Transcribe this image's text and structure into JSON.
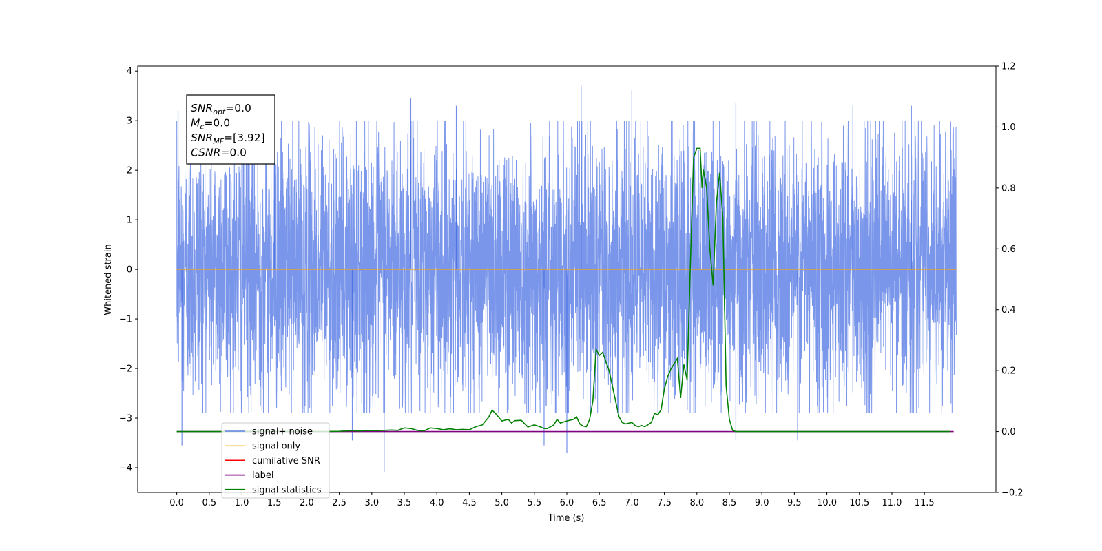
{
  "chart_data": {
    "type": "line",
    "xlabel": "Time (s)",
    "ylabel": "Whitened strain",
    "xlim": [
      -0.6,
      12.6
    ],
    "ylim": [
      -4.5,
      4.1
    ],
    "y2lim": [
      -0.2,
      1.2
    ],
    "x_ticks": [
      0.0,
      0.5,
      1.0,
      1.5,
      2.0,
      2.5,
      3.0,
      3.5,
      4.0,
      4.5,
      5.0,
      5.5,
      6.0,
      6.5,
      7.0,
      7.5,
      8.0,
      8.5,
      9.0,
      9.5,
      10.0,
      10.5,
      11.0,
      11.5
    ],
    "x_tick_labels": [
      "0.0",
      "0.5",
      "1.0",
      "1.5",
      "2.0",
      "2.5",
      "3.0",
      "3.5",
      "4.0",
      "4.5",
      "5.0",
      "5.5",
      "6.0",
      "6.5",
      "7.0",
      "7.5",
      "8.0",
      "8.5",
      "9.0",
      "9.5",
      "10.0",
      "10.5",
      "11.0",
      "11.5"
    ],
    "y_ticks": [
      -4,
      -3,
      -2,
      -1,
      0,
      1,
      2,
      3,
      4
    ],
    "y_tick_labels": [
      "−4",
      "−3",
      "−2",
      "−1",
      "0",
      "1",
      "2",
      "3",
      "4"
    ],
    "y2_ticks": [
      -0.2,
      0.0,
      0.2,
      0.4,
      0.6,
      0.8,
      1.0,
      1.2
    ],
    "y2_tick_labels": [
      "−0.2",
      "0.0",
      "0.2",
      "0.4",
      "0.6",
      "0.8",
      "1.0",
      "1.2"
    ],
    "grid": false,
    "legend_placement": "lower-left",
    "info_box": {
      "lines": [
        {
          "base": "SNR",
          "sub": "opt",
          "rest": "=0.0"
        },
        {
          "base": "M",
          "sub": "c",
          "rest": "=0.0"
        },
        {
          "base": "SNR",
          "sub": "MF",
          "rest": "=[3.92]"
        },
        {
          "base": "CSNR",
          "sub": "",
          "rest": "=0.0"
        }
      ]
    },
    "series": [
      {
        "name": "signal+ noise",
        "color": "#4169e1",
        "axis": "left",
        "kind": "noise",
        "x_range": [
          0.0,
          11.99
        ],
        "typical_amplitude": [
          -2.3,
          2.6
        ],
        "extreme_max": 3.7,
        "extreme_min": -4.1,
        "spikes": [
          {
            "x": 0.08,
            "y": -3.55
          },
          {
            "x": 3.19,
            "y": -4.1
          },
          {
            "x": 6.0,
            "y": -3.7
          },
          {
            "x": 5.65,
            "y": -3.55
          },
          {
            "x": 8.6,
            "y": -3.45
          },
          {
            "x": 9.55,
            "y": -3.45
          },
          {
            "x": 2.7,
            "y": -3.45
          },
          {
            "x": 6.22,
            "y": 3.7
          },
          {
            "x": 7.0,
            "y": 3.62
          },
          {
            "x": 3.6,
            "y": 3.45
          },
          {
            "x": 1.5,
            "y": 3.3
          },
          {
            "x": 8.6,
            "y": 3.35
          },
          {
            "x": 11.3,
            "y": 3.3
          },
          {
            "x": 0.02,
            "y": 3.2
          },
          {
            "x": 4.3,
            "y": 3.3
          },
          {
            "x": 10.4,
            "y": 3.3
          }
        ]
      },
      {
        "name": "signal only",
        "color": "#ffa500",
        "axis": "left",
        "x": [
          0.0,
          12.0
        ],
        "y": [
          0.0,
          0.0
        ]
      },
      {
        "name": "cumilative SNR",
        "color": "#ff0000",
        "axis": "right",
        "x": [],
        "y": []
      },
      {
        "name": "label",
        "color": "#800080",
        "axis": "right",
        "x": [
          0.0,
          11.95
        ],
        "y": [
          0.0,
          0.0
        ]
      },
      {
        "name": "signal statistics",
        "color": "#008000",
        "axis": "right",
        "x": [
          0.0,
          2.0,
          2.3,
          2.5,
          2.6,
          2.7,
          2.8,
          2.9,
          3.0,
          3.1,
          3.2,
          3.3,
          3.4,
          3.5,
          3.6,
          3.7,
          3.8,
          3.9,
          4.0,
          4.1,
          4.2,
          4.3,
          4.4,
          4.5,
          4.6,
          4.7,
          4.75,
          4.8,
          4.85,
          4.9,
          5.0,
          5.1,
          5.15,
          5.2,
          5.3,
          5.4,
          5.5,
          5.6,
          5.65,
          5.7,
          5.8,
          5.85,
          5.9,
          6.0,
          6.1,
          6.15,
          6.2,
          6.25,
          6.3,
          6.35,
          6.4,
          6.45,
          6.5,
          6.55,
          6.6,
          6.65,
          6.7,
          6.75,
          6.8,
          6.85,
          6.9,
          7.0,
          7.05,
          7.1,
          7.15,
          7.2,
          7.3,
          7.35,
          7.4,
          7.45,
          7.5,
          7.55,
          7.6,
          7.7,
          7.75,
          7.8,
          7.85,
          7.9,
          7.95,
          8.0,
          8.05,
          8.08,
          8.1,
          8.15,
          8.2,
          8.25,
          8.3,
          8.35,
          8.4,
          8.45,
          8.5,
          8.55,
          8.6,
          8.65,
          8.7,
          8.75,
          8.8,
          8.85,
          8.9,
          9.0,
          9.5,
          11.9
        ],
        "y": [
          0.0,
          0.0,
          0.0,
          0.001,
          0.002,
          0.003,
          0.002,
          0.003,
          0.003,
          0.003,
          0.004,
          0.005,
          0.004,
          0.012,
          0.01,
          0.004,
          0.002,
          0.012,
          0.01,
          0.006,
          0.009,
          0.006,
          0.007,
          0.006,
          0.016,
          0.022,
          0.035,
          0.048,
          0.07,
          0.06,
          0.035,
          0.04,
          0.028,
          0.036,
          0.037,
          0.015,
          0.022,
          0.015,
          0.01,
          0.01,
          0.022,
          0.04,
          0.028,
          0.035,
          0.04,
          0.048,
          0.025,
          0.018,
          0.016,
          0.04,
          0.1,
          0.27,
          0.25,
          0.26,
          0.23,
          0.2,
          0.15,
          0.1,
          0.05,
          0.03,
          0.025,
          0.03,
          0.02,
          0.016,
          0.02,
          0.016,
          0.03,
          0.06,
          0.055,
          0.072,
          0.14,
          0.18,
          0.205,
          0.24,
          0.11,
          0.22,
          0.17,
          0.55,
          0.9,
          0.93,
          0.93,
          0.8,
          0.86,
          0.8,
          0.6,
          0.48,
          0.75,
          0.85,
          0.7,
          0.15,
          0.04,
          0.004,
          0.0,
          0.0,
          0.0,
          0.0,
          0.0,
          0.0,
          0.0,
          0.0,
          0.0,
          0.0
        ]
      }
    ]
  },
  "legend": {
    "items": [
      {
        "label": "signal+ noise",
        "color": "#7090e0"
      },
      {
        "label": "signal only",
        "color": "#ffd27f"
      },
      {
        "label": "cumilative SNR",
        "color": "#ff0000"
      },
      {
        "label": "label",
        "color": "#800080"
      },
      {
        "label": "signal statistics",
        "color": "#008000"
      }
    ]
  }
}
